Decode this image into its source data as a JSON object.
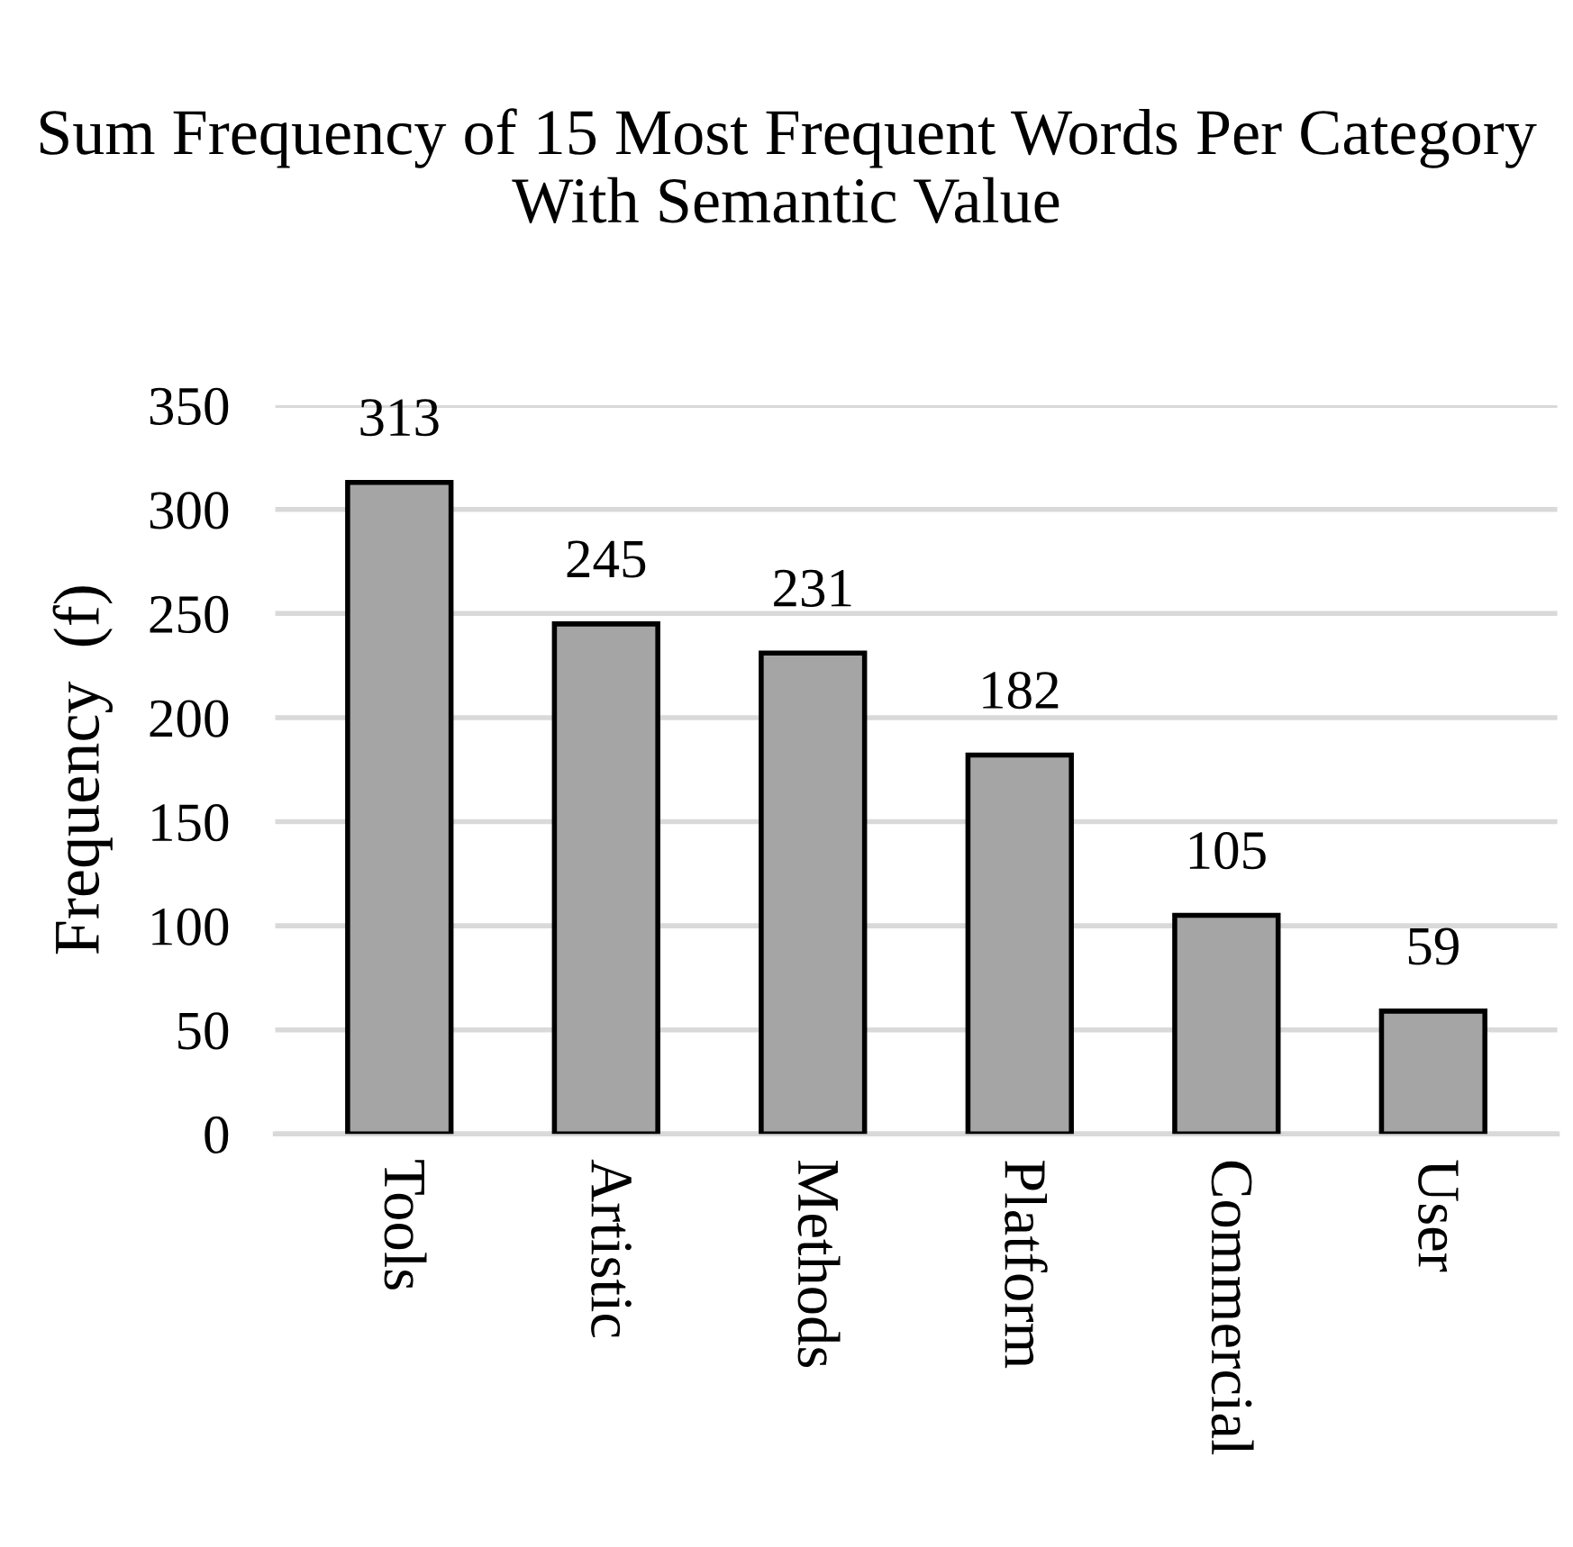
{
  "chart_data": {
    "type": "bar",
    "title": "Sum Frequency of 15 Most Frequent Words Per Category With Semantic Value",
    "ylabel": "Frequency  (f)",
    "categories": [
      "Tools",
      "Artistic",
      "Methods",
      "Platform",
      "Commercial",
      "User"
    ],
    "values": [
      313,
      245,
      231,
      182,
      105,
      59
    ],
    "color": "#a5a5a5",
    "ylim": [
      0,
      350
    ],
    "yticks": [
      0,
      50,
      100,
      150,
      200,
      250,
      300,
      350
    ],
    "grid": "y",
    "data_labels": true,
    "legend": false
  }
}
